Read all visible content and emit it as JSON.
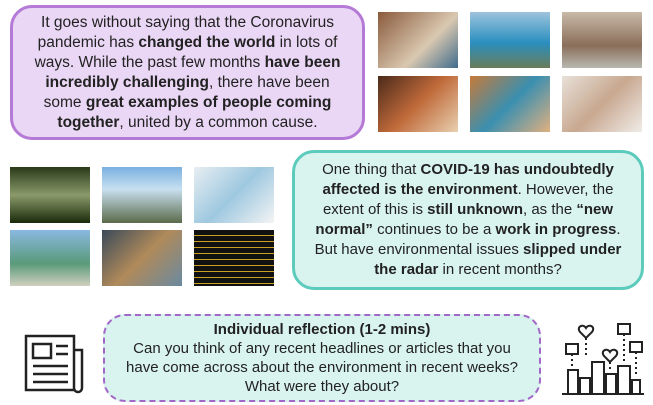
{
  "intro": {
    "segments": [
      {
        "text": "It goes without saying that the Coronavirus pandemic has ",
        "bold": false
      },
      {
        "text": "changed the world",
        "bold": true
      },
      {
        "text": " in lots of ways. While the past few months ",
        "bold": false
      },
      {
        "text": "have been incredibly challenging",
        "bold": true
      },
      {
        "text": ", there have been some ",
        "bold": false
      },
      {
        "text": "great examples of people coming together",
        "bold": true
      },
      {
        "text": ", united by a common cause.",
        "bold": false
      }
    ]
  },
  "environment": {
    "segments": [
      {
        "text": "One thing that ",
        "bold": false
      },
      {
        "text": "COVID-19 has undoubtedly affected is the environment",
        "bold": true
      },
      {
        "text": ". However, the extent of this is ",
        "bold": false
      },
      {
        "text": "still unknown",
        "bold": true
      },
      {
        "text": ", as the ",
        "bold": false
      },
      {
        "text": "“new normal”",
        "bold": true
      },
      {
        "text": " continues to be a ",
        "bold": false
      },
      {
        "text": "work in progress",
        "bold": true
      },
      {
        "text": ". But have environmental issues ",
        "bold": false
      },
      {
        "text": "slipped under the radar",
        "bold": true
      },
      {
        "text": " in recent months?",
        "bold": false
      }
    ]
  },
  "reflection": {
    "title": "Individual reflection (1-2 mins)",
    "body": "Can you think of any recent headlines or articles that you have come across about the environment in recent weeks? What were they about?"
  }
}
